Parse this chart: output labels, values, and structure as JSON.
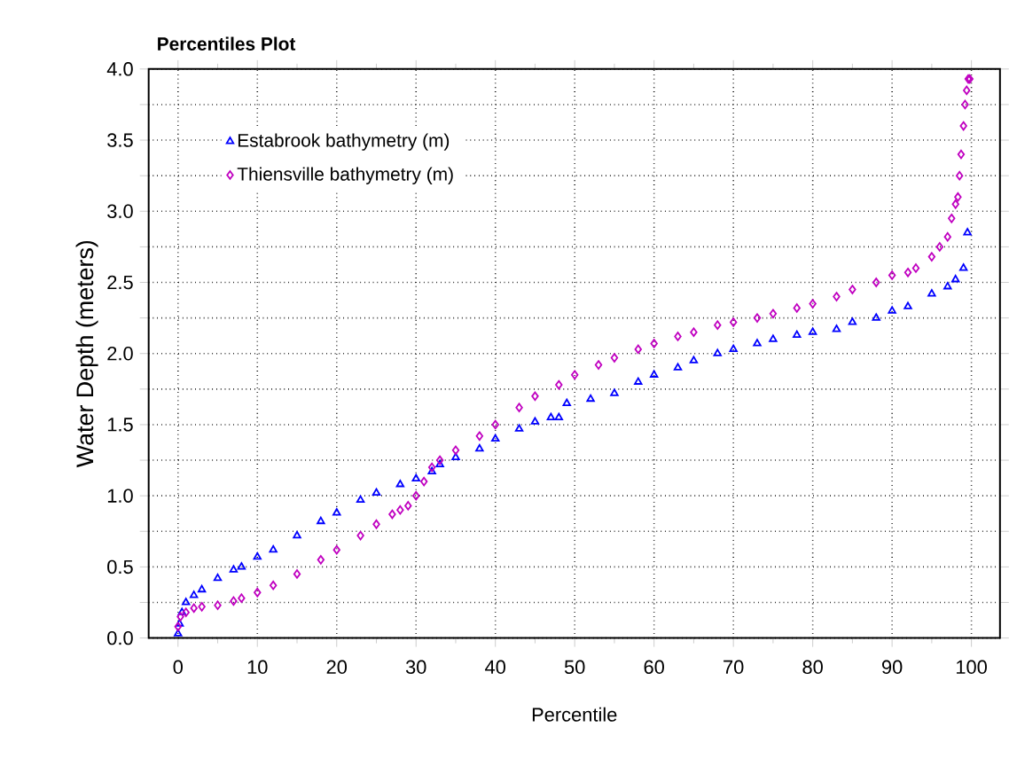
{
  "chart_data": {
    "type": "scatter",
    "title": "Percentiles Plot",
    "xlabel": "Percentile",
    "ylabel": "Water Depth (meters)",
    "xlim": [
      -3.7,
      103.6
    ],
    "ylim": [
      0,
      4.0
    ],
    "xticks": [
      0,
      10,
      20,
      30,
      40,
      50,
      60,
      70,
      80,
      90,
      100
    ],
    "yticks": [
      {
        "value": 0,
        "label": "0.0"
      },
      {
        "value": 0.25,
        "label": null
      },
      {
        "value": 0.5,
        "label": "0.5"
      },
      {
        "value": 0.75,
        "label": null
      },
      {
        "value": 1,
        "label": "1.0"
      },
      {
        "value": 1.25,
        "label": null
      },
      {
        "value": 1.5,
        "label": "1.5"
      },
      {
        "value": 1.75,
        "label": null
      },
      {
        "value": 2,
        "label": "2.0"
      },
      {
        "value": 2.25,
        "label": null
      },
      {
        "value": 2.5,
        "label": "2.5"
      },
      {
        "value": 2.75,
        "label": null
      },
      {
        "value": 3,
        "label": "3.0"
      },
      {
        "value": 3.25,
        "label": null
      },
      {
        "value": 3.5,
        "label": "3.5"
      },
      {
        "value": 3.75,
        "label": null
      },
      {
        "value": 4,
        "label": "4.0"
      }
    ],
    "grid": true,
    "legend": "top left",
    "series": [
      {
        "name": "Estabrook bathymetry (m)",
        "color": "#0000ff",
        "marker": "triangle",
        "x": [
          0,
          0.2,
          0.5,
          1,
          2,
          3,
          5,
          7,
          8,
          10,
          12,
          15,
          18,
          20,
          23,
          25,
          28,
          30,
          32,
          33,
          35,
          38,
          40,
          43,
          45,
          47,
          48,
          49,
          52,
          55,
          58,
          60,
          63,
          65,
          68,
          70,
          73,
          75,
          78,
          80,
          83,
          85,
          88,
          90,
          92,
          95,
          97,
          98,
          99,
          99.5
        ],
        "values": [
          0.03,
          0.1,
          0.18,
          0.25,
          0.3,
          0.34,
          0.42,
          0.48,
          0.5,
          0.57,
          0.62,
          0.72,
          0.82,
          0.88,
          0.97,
          1.02,
          1.08,
          1.12,
          1.17,
          1.22,
          1.27,
          1.33,
          1.4,
          1.47,
          1.52,
          1.55,
          1.55,
          1.65,
          1.68,
          1.72,
          1.8,
          1.85,
          1.9,
          1.95,
          2.0,
          2.03,
          2.07,
          2.1,
          2.13,
          2.15,
          2.17,
          2.22,
          2.25,
          2.3,
          2.33,
          2.42,
          2.47,
          2.52,
          2.6,
          2.85
        ]
      },
      {
        "name": "Thiensville bathymetry (m)",
        "color": "#c000c0",
        "marker": "diamond",
        "x": [
          0,
          0.3,
          1,
          2,
          3,
          5,
          7,
          8,
          10,
          12,
          15,
          18,
          20,
          23,
          25,
          27,
          28,
          29,
          30,
          31,
          32,
          33,
          35,
          38,
          40,
          43,
          45,
          48,
          50,
          53,
          55,
          58,
          60,
          63,
          65,
          68,
          70,
          73,
          75,
          78,
          80,
          83,
          85,
          88,
          90,
          92,
          93,
          95,
          96,
          97,
          97.5,
          98,
          98.3,
          98.5,
          98.7,
          99,
          99.2,
          99.4,
          99.6,
          99.8
        ],
        "values": [
          0.08,
          0.15,
          0.18,
          0.21,
          0.22,
          0.23,
          0.26,
          0.28,
          0.32,
          0.37,
          0.45,
          0.55,
          0.62,
          0.72,
          0.8,
          0.87,
          0.9,
          0.93,
          1.0,
          1.1,
          1.2,
          1.25,
          1.32,
          1.42,
          1.5,
          1.62,
          1.7,
          1.78,
          1.85,
          1.92,
          1.97,
          2.03,
          2.07,
          2.12,
          2.15,
          2.2,
          2.22,
          2.25,
          2.28,
          2.32,
          2.35,
          2.4,
          2.45,
          2.5,
          2.55,
          2.57,
          2.6,
          2.68,
          2.75,
          2.82,
          2.95,
          3.05,
          3.1,
          3.25,
          3.4,
          3.6,
          3.75,
          3.85,
          3.93,
          3.93
        ]
      }
    ]
  }
}
